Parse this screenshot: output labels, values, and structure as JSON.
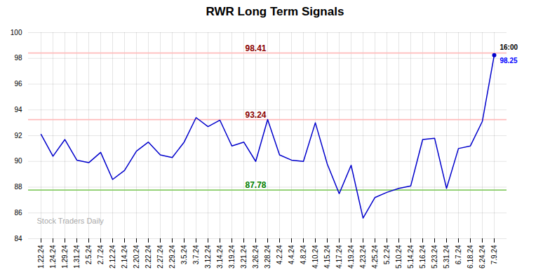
{
  "chart_data": {
    "type": "line",
    "title": "RWR Long Term Signals",
    "categories": [
      "1.22.24",
      "1.24.24",
      "1.29.24",
      "1.31.24",
      "2.5.24",
      "2.7.24",
      "2.12.24",
      "2.14.24",
      "2.20.24",
      "2.22.24",
      "2.27.24",
      "2.29.24",
      "3.5.24",
      "3.7.24",
      "3.12.24",
      "3.14.24",
      "3.19.24",
      "3.21.24",
      "3.26.24",
      "3.28.24",
      "4.2.24",
      "4.4.24",
      "4.8.24",
      "4.10.24",
      "4.15.24",
      "4.17.24",
      "4.19.24",
      "4.23.24",
      "4.25.24",
      "5.2.24",
      "5.10.24",
      "5.14.24",
      "5.16.24",
      "5.23.24",
      "5.31.24",
      "6.7.24",
      "6.18.24",
      "6.24.24",
      "7.9.24"
    ],
    "values": [
      92.1,
      90.4,
      91.7,
      90.1,
      89.9,
      90.7,
      88.6,
      89.3,
      90.8,
      91.5,
      90.5,
      90.3,
      91.5,
      93.4,
      92.7,
      93.2,
      91.2,
      91.5,
      90.0,
      93.25,
      90.5,
      90.1,
      90.0,
      93.0,
      89.8,
      87.5,
      89.7,
      85.6,
      87.2,
      87.6,
      87.9,
      88.1,
      91.7,
      91.8,
      87.9,
      91.0,
      91.2,
      93.1,
      98.25
    ],
    "color": "#0000cc",
    "ylim": [
      84,
      100
    ],
    "yticks": [
      84,
      86,
      88,
      90,
      92,
      94,
      96,
      98,
      100
    ],
    "grid": true,
    "reference_lines": [
      {
        "value": 98.41,
        "color": "#ffbbbb",
        "label": "98.41",
        "label_color": "darkred",
        "label_x": "3.26.24"
      },
      {
        "value": 93.24,
        "color": "#ffbbbb",
        "label": "93.24",
        "label_color": "darkred",
        "label_x": "3.26.24"
      },
      {
        "value": 87.78,
        "color": "#88cc66",
        "label": "87.78",
        "label_color": "green",
        "label_x": "3.26.24"
      }
    ],
    "annotations": [
      {
        "text": "16:00",
        "x": "7.9.24",
        "y": 98.25,
        "color": "black",
        "position": "above"
      },
      {
        "text": "98.25",
        "x": "7.9.24",
        "y": 98.25,
        "color": "blue",
        "position": "below"
      }
    ],
    "watermark": "Stock Traders Daily"
  }
}
